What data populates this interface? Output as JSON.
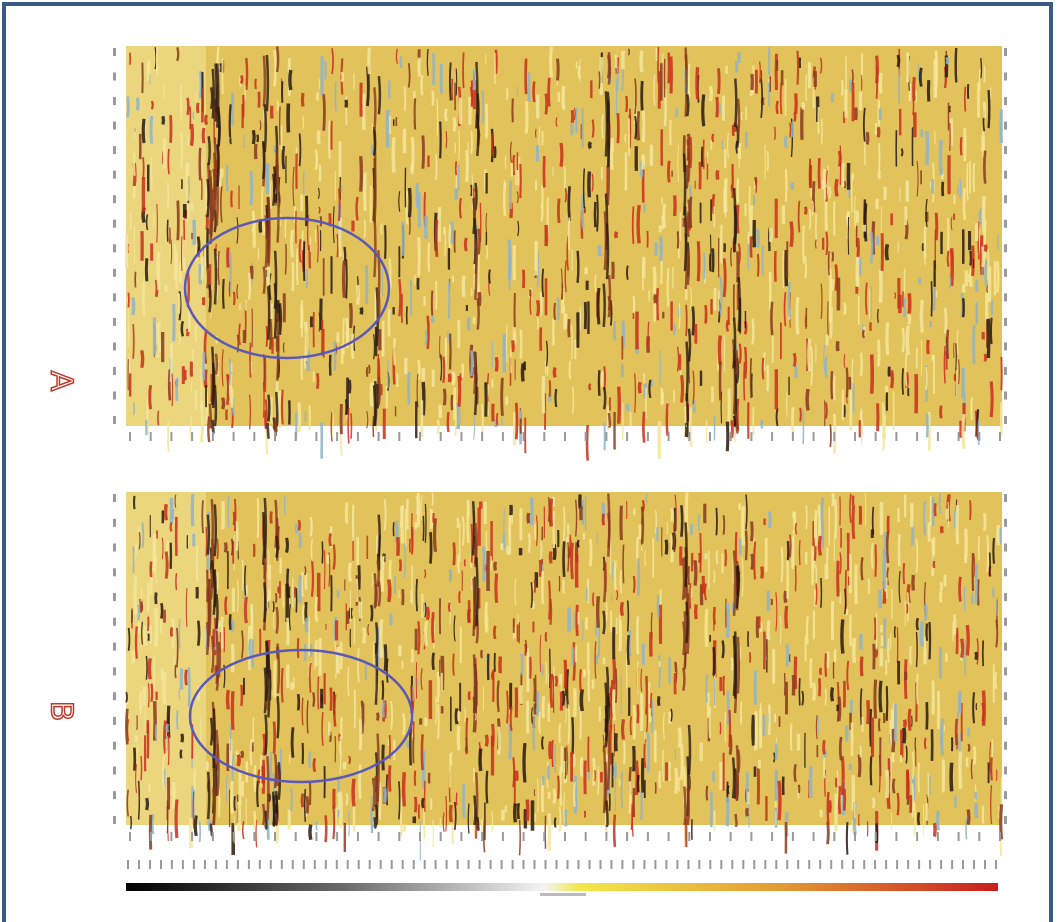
{
  "panels": [
    {
      "id": "A",
      "label": "A"
    },
    {
      "id": "B",
      "label": "B"
    }
  ],
  "colors": {
    "frame": "#3a5b87",
    "ellipse": "#5a58b8",
    "label_outline": "#c0392b",
    "seismic_bg": "#e2c25a",
    "seismic_light": "#f3e69a",
    "seismic_red": "#c8301c",
    "seismic_dark": "#2a1a10",
    "seismic_brown": "#8a3a1e",
    "seismic_blue": "#8fb3c9"
  },
  "annotations": [
    {
      "panel": "A",
      "shape": "ellipse",
      "color": "ellipse"
    },
    {
      "panel": "B",
      "shape": "ellipse",
      "color": "ellipse"
    }
  ],
  "colorbar": {
    "stops": [
      "#000000",
      "#8a8a8a",
      "#ffffff",
      "#f0e640",
      "#e08a30",
      "#c81e1e"
    ]
  }
}
